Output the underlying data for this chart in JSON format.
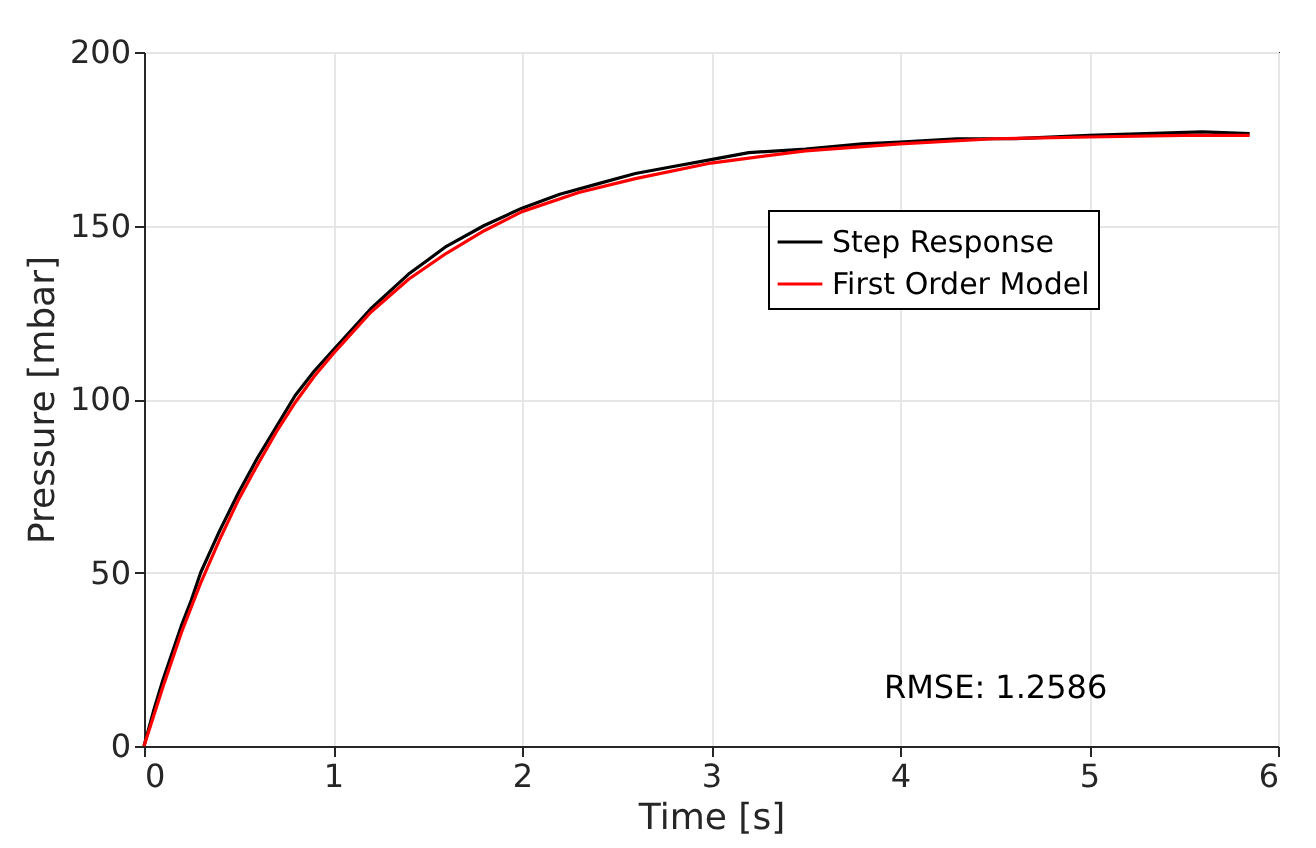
{
  "chart_data": {
    "type": "line",
    "xlabel": "Time [s]",
    "ylabel": "Pressure [mbar]",
    "xlim": [
      0,
      6
    ],
    "xticks": [
      0,
      1,
      2,
      3,
      4,
      5,
      6
    ],
    "ylim": [
      0,
      200
    ],
    "yticks": [
      0,
      50,
      100,
      150,
      200
    ],
    "grid": true,
    "legend": "top right",
    "annotations": [
      "RMSE: 1.2586"
    ],
    "series": [
      {
        "name": "Step Response",
        "color": "#000000",
        "x": [
          0,
          0.05,
          0.1,
          0.15,
          0.2,
          0.25,
          0.3,
          0.35,
          0.4,
          0.5,
          0.6,
          0.7,
          0.8,
          0.9,
          1.0,
          1.1,
          1.2,
          1.3,
          1.4,
          1.5,
          1.6,
          1.8,
          2.0,
          2.2,
          2.4,
          2.6,
          2.8,
          3.0,
          3.2,
          3.5,
          3.8,
          4.0,
          4.3,
          4.6,
          5.0,
          5.3,
          5.6,
          5.85
        ],
        "values": [
          0,
          10,
          19,
          27,
          35,
          42,
          50,
          56,
          62,
          73,
          83,
          92,
          101,
          108,
          114,
          120,
          126,
          131,
          136,
          140,
          144,
          150,
          155,
          159,
          162,
          165,
          167,
          169,
          171,
          172,
          173.5,
          174,
          175,
          175,
          176,
          176.5,
          177,
          176.5
        ]
      },
      {
        "name": "First Order Model",
        "color": "#ff0000",
        "x": [
          0,
          0.1,
          0.2,
          0.3,
          0.4,
          0.5,
          0.6,
          0.7,
          0.8,
          0.9,
          1.0,
          1.2,
          1.4,
          1.6,
          1.8,
          2.0,
          2.3,
          2.6,
          3.0,
          3.5,
          4.0,
          4.5,
          5.0,
          5.5,
          5.85
        ],
        "values": [
          0,
          17,
          33,
          47,
          59.5,
          71,
          81,
          90.5,
          99,
          106.5,
          113,
          125,
          134.5,
          142,
          148.5,
          154,
          159.5,
          163.5,
          168,
          171.5,
          173.5,
          175,
          175.5,
          176,
          176
        ]
      }
    ]
  }
}
